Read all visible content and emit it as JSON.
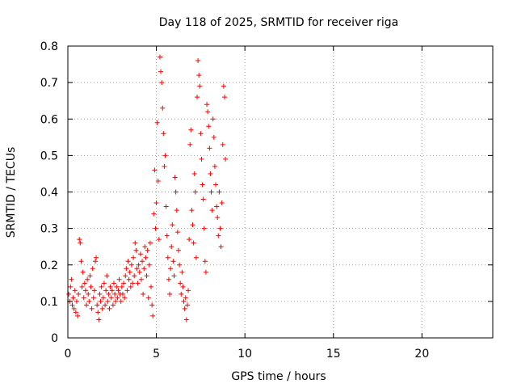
{
  "chart_data": {
    "type": "scatter",
    "title": "Day 118 of 2025, SRMTID for receiver riga",
    "xlabel": "GPS time / hours",
    "ylabel": "SRMTID / TECUs",
    "xlim": [
      0,
      24
    ],
    "ylim": [
      0,
      0.8
    ],
    "xticks": [
      0,
      5,
      10,
      15,
      20
    ],
    "yticks": [
      0,
      0.1,
      0.2,
      0.3,
      0.4,
      0.5,
      0.6,
      0.7,
      0.8
    ],
    "xtick_labels": [
      "0",
      "5",
      "10",
      "15",
      "20"
    ],
    "ytick_labels": [
      "0",
      "0.1",
      "0.2",
      "0.3",
      "0.4",
      "0.5",
      "0.6",
      "0.7",
      "0.8"
    ],
    "grid": true,
    "marker": "+",
    "color": "#ff0000",
    "series": [
      {
        "name": "SRMTID",
        "points": [
          [
            0.05,
            0.12
          ],
          [
            0.1,
            0.1
          ],
          [
            0.15,
            0.14
          ],
          [
            0.2,
            0.16
          ],
          [
            0.25,
            0.09
          ],
          [
            0.3,
            0.11
          ],
          [
            0.35,
            0.08
          ],
          [
            0.4,
            0.13
          ],
          [
            0.45,
            0.07
          ],
          [
            0.5,
            0.1
          ],
          [
            0.55,
            0.06
          ],
          [
            0.6,
            0.12
          ],
          [
            0.65,
            0.27
          ],
          [
            0.7,
            0.26
          ],
          [
            0.75,
            0.21
          ],
          [
            0.8,
            0.14
          ],
          [
            0.85,
            0.18
          ],
          [
            0.9,
            0.11
          ],
          [
            0.95,
            0.15
          ],
          [
            1.0,
            0.13
          ],
          [
            1.05,
            0.09
          ],
          [
            1.1,
            0.16
          ],
          [
            1.15,
            0.12
          ],
          [
            1.2,
            0.1
          ],
          [
            1.25,
            0.17
          ],
          [
            1.3,
            0.14
          ],
          [
            1.35,
            0.08
          ],
          [
            1.4,
            0.19
          ],
          [
            1.45,
            0.11
          ],
          [
            1.5,
            0.13
          ],
          [
            1.55,
            0.21
          ],
          [
            1.6,
            0.22
          ],
          [
            1.65,
            0.09
          ],
          [
            1.7,
            0.07
          ],
          [
            1.75,
            0.05
          ],
          [
            1.8,
            0.12
          ],
          [
            1.85,
            0.1
          ],
          [
            1.9,
            0.14
          ],
          [
            1.95,
            0.08
          ],
          [
            2.0,
            0.11
          ],
          [
            2.05,
            0.15
          ],
          [
            2.1,
            0.09
          ],
          [
            2.15,
            0.13
          ],
          [
            2.2,
            0.17
          ],
          [
            2.25,
            0.1
          ],
          [
            2.3,
            0.12
          ],
          [
            2.35,
            0.08
          ],
          [
            2.4,
            0.14
          ],
          [
            2.45,
            0.11
          ],
          [
            2.5,
            0.13
          ],
          [
            2.55,
            0.09
          ],
          [
            2.6,
            0.15
          ],
          [
            2.65,
            0.12
          ],
          [
            2.7,
            0.1
          ],
          [
            2.75,
            0.14
          ],
          [
            2.8,
            0.11
          ],
          [
            2.85,
            0.13
          ],
          [
            2.9,
            0.16
          ],
          [
            2.95,
            0.12
          ],
          [
            3.0,
            0.1
          ],
          [
            3.05,
            0.14
          ],
          [
            3.1,
            0.12
          ],
          [
            3.15,
            0.15
          ],
          [
            3.2,
            0.11
          ],
          [
            3.25,
            0.17
          ],
          [
            3.3,
            0.19
          ],
          [
            3.35,
            0.13
          ],
          [
            3.4,
            0.21
          ],
          [
            3.45,
            0.16
          ],
          [
            3.5,
            0.18
          ],
          [
            3.55,
            0.14
          ],
          [
            3.6,
            0.2
          ],
          [
            3.65,
            0.15
          ],
          [
            3.7,
            0.22
          ],
          [
            3.75,
            0.17
          ],
          [
            3.8,
            0.26
          ],
          [
            3.85,
            0.24
          ],
          [
            3.9,
            0.19
          ],
          [
            3.95,
            0.15
          ],
          [
            4.0,
            0.2
          ],
          [
            4.05,
            0.18
          ],
          [
            4.1,
            0.23
          ],
          [
            4.15,
            0.16
          ],
          [
            4.2,
            0.21
          ],
          [
            4.25,
            0.12
          ],
          [
            4.3,
            0.19
          ],
          [
            4.35,
            0.25
          ],
          [
            4.4,
            0.22
          ],
          [
            4.45,
            0.17
          ],
          [
            4.5,
            0.24
          ],
          [
            4.55,
            0.11
          ],
          [
            4.6,
            0.2
          ],
          [
            4.65,
            0.26
          ],
          [
            4.7,
            0.14
          ],
          [
            4.75,
            0.09
          ],
          [
            4.8,
            0.06
          ],
          [
            4.85,
            0.34
          ],
          [
            4.9,
            0.46
          ],
          [
            4.95,
            0.3
          ],
          [
            5.0,
            0.37
          ],
          [
            5.05,
            0.59
          ],
          [
            5.1,
            0.43
          ],
          [
            5.15,
            0.27
          ],
          [
            5.2,
            0.77
          ],
          [
            5.25,
            0.73
          ],
          [
            5.3,
            0.7
          ],
          [
            5.35,
            0.63
          ],
          [
            5.4,
            0.56
          ],
          [
            5.45,
            0.47
          ],
          [
            5.5,
            0.5
          ],
          [
            5.55,
            0.36
          ],
          [
            5.6,
            0.28
          ],
          [
            5.65,
            0.22
          ],
          [
            5.7,
            0.16
          ],
          [
            5.75,
            0.12
          ],
          [
            5.8,
            0.19
          ],
          [
            5.85,
            0.25
          ],
          [
            5.9,
            0.31
          ],
          [
            5.95,
            0.21
          ],
          [
            6.0,
            0.17
          ],
          [
            6.05,
            0.44
          ],
          [
            6.1,
            0.4
          ],
          [
            6.15,
            0.35
          ],
          [
            6.2,
            0.29
          ],
          [
            6.25,
            0.24
          ],
          [
            6.3,
            0.2
          ],
          [
            6.35,
            0.15
          ],
          [
            6.4,
            0.12
          ],
          [
            6.45,
            0.18
          ],
          [
            6.5,
            0.14
          ],
          [
            6.55,
            0.1
          ],
          [
            6.6,
            0.08
          ],
          [
            6.65,
            0.11
          ],
          [
            6.7,
            0.05
          ],
          [
            6.75,
            0.09
          ],
          [
            6.8,
            0.13
          ],
          [
            6.85,
            0.27
          ],
          [
            6.9,
            0.53
          ],
          [
            6.95,
            0.57
          ],
          [
            7.0,
            0.35
          ],
          [
            7.05,
            0.31
          ],
          [
            7.1,
            0.26
          ],
          [
            7.15,
            0.45
          ],
          [
            7.2,
            0.4
          ],
          [
            7.25,
            0.22
          ],
          [
            7.3,
            0.66
          ],
          [
            7.35,
            0.76
          ],
          [
            7.4,
            0.72
          ],
          [
            7.45,
            0.69
          ],
          [
            7.5,
            0.56
          ],
          [
            7.55,
            0.49
          ],
          [
            7.6,
            0.42
          ],
          [
            7.65,
            0.38
          ],
          [
            7.7,
            0.3
          ],
          [
            7.75,
            0.21
          ],
          [
            7.8,
            0.18
          ],
          [
            7.85,
            0.64
          ],
          [
            7.9,
            0.62
          ],
          [
            7.95,
            0.58
          ],
          [
            8.0,
            0.52
          ],
          [
            8.05,
            0.45
          ],
          [
            8.1,
            0.4
          ],
          [
            8.15,
            0.35
          ],
          [
            8.2,
            0.6
          ],
          [
            8.25,
            0.55
          ],
          [
            8.3,
            0.47
          ],
          [
            8.35,
            0.42
          ],
          [
            8.4,
            0.36
          ],
          [
            8.45,
            0.33
          ],
          [
            8.5,
            0.28
          ],
          [
            8.55,
            0.4
          ],
          [
            8.6,
            0.3
          ],
          [
            8.65,
            0.25
          ],
          [
            8.7,
            0.37
          ],
          [
            8.75,
            0.53
          ],
          [
            8.8,
            0.69
          ],
          [
            8.85,
            0.66
          ],
          [
            8.9,
            0.49
          ]
        ]
      }
    ]
  }
}
